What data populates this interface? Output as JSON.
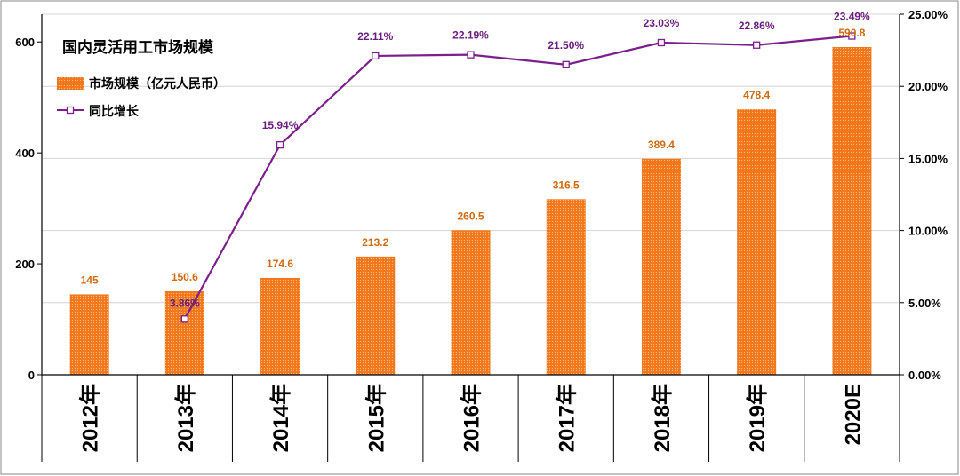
{
  "chart_data": {
    "type": "bar",
    "title": "国内灵活用工市场规模",
    "categories": [
      "2012年",
      "2013年",
      "2014年",
      "2015年",
      "2016年",
      "2017年",
      "2018年",
      "2019年",
      "2020E"
    ],
    "series": [
      {
        "name": "市场规模（亿元人民币）",
        "type": "bar",
        "axis": "left",
        "values": [
          145,
          150.6,
          174.6,
          213.2,
          260.5,
          316.5,
          389.4,
          478.4,
          590.8
        ],
        "labels": [
          "145",
          "150.6",
          "174.6",
          "213.2",
          "260.5",
          "316.5",
          "389.4",
          "478.4",
          "590.8"
        ],
        "color": "#f47b20"
      },
      {
        "name": "同比增长",
        "type": "line",
        "axis": "right",
        "values": [
          null,
          3.86,
          15.94,
          22.11,
          22.19,
          21.5,
          23.03,
          22.86,
          23.49
        ],
        "labels": [
          "",
          "3.86%",
          "15.94%",
          "22.11%",
          "22.19%",
          "21.50%",
          "23.03%",
          "22.86%",
          "23.49%"
        ],
        "color": "#7b1f8a"
      }
    ],
    "y_left": {
      "ylim": [
        0,
        650
      ],
      "ticks": [
        0,
        200,
        400,
        600
      ],
      "tick_labels": [
        "0",
        "200",
        "400",
        "600"
      ]
    },
    "y_right": {
      "ylim": [
        0,
        25
      ],
      "ticks": [
        0,
        5,
        10,
        15,
        20,
        25
      ],
      "tick_labels": [
        "0.00%",
        "5.00%",
        "10.00%",
        "15.00%",
        "20.00%",
        "25.00%"
      ]
    },
    "grid": true,
    "legend_position": "top-left"
  }
}
